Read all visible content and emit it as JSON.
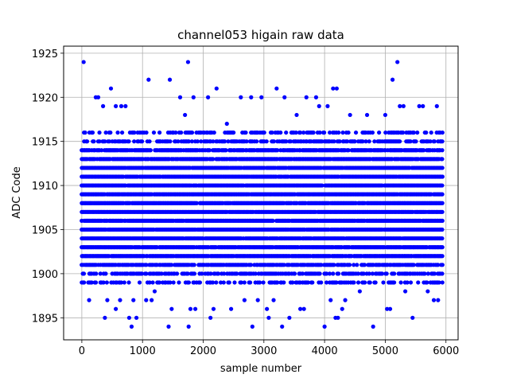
{
  "chart_data": {
    "type": "scatter",
    "title": "channel053 higain raw data",
    "xlabel": "sample number",
    "ylabel": "ADC Code",
    "xlim": [
      -300,
      6200
    ],
    "ylim": [
      1892.5,
      1925.8
    ],
    "x_ticks": [
      0,
      1000,
      2000,
      3000,
      4000,
      5000,
      6000
    ],
    "y_ticks": [
      1895,
      1900,
      1905,
      1910,
      1915,
      1920,
      1925
    ],
    "grid": true,
    "legend": "none",
    "marker_color": "#0000ff",
    "sample_range": [
      0,
      5940
    ],
    "series": [
      {
        "band_levels": [
          1899,
          1900,
          1901,
          1902,
          1903,
          1904,
          1905,
          1906,
          1907,
          1908,
          1909,
          1910,
          1911,
          1912,
          1913,
          1914,
          1915,
          1916
        ],
        "outlier_points": [
          [
            30,
            1924
          ],
          [
            120,
            1897
          ],
          [
            230,
            1920
          ],
          [
            270,
            1920
          ],
          [
            350,
            1919
          ],
          [
            480,
            1921
          ],
          [
            560,
            1919
          ],
          [
            650,
            1919
          ],
          [
            720,
            1919
          ],
          [
            380,
            1895
          ],
          [
            420,
            1897
          ],
          [
            560,
            1896
          ],
          [
            630,
            1897
          ],
          [
            780,
            1895
          ],
          [
            820,
            1894
          ],
          [
            900,
            1895
          ],
          [
            850,
            1897
          ],
          [
            1060,
            1897
          ],
          [
            1100,
            1922
          ],
          [
            1150,
            1897
          ],
          [
            1200,
            1898
          ],
          [
            1430,
            1894
          ],
          [
            1450,
            1922
          ],
          [
            1480,
            1896
          ],
          [
            1620,
            1920
          ],
          [
            1700,
            1918
          ],
          [
            1750,
            1924
          ],
          [
            1760,
            1894
          ],
          [
            1790,
            1896
          ],
          [
            1840,
            1920
          ],
          [
            1870,
            1896
          ],
          [
            2080,
            1920
          ],
          [
            2120,
            1895
          ],
          [
            2170,
            1896
          ],
          [
            2220,
            1921
          ],
          [
            2390,
            1917
          ],
          [
            2460,
            1896
          ],
          [
            2620,
            1920
          ],
          [
            2680,
            1897
          ],
          [
            2790,
            1920
          ],
          [
            2810,
            1894
          ],
          [
            2900,
            1897
          ],
          [
            2960,
            1920
          ],
          [
            3050,
            1896
          ],
          [
            3080,
            1895
          ],
          [
            3160,
            1897
          ],
          [
            3210,
            1921
          ],
          [
            3300,
            1894
          ],
          [
            3340,
            1920
          ],
          [
            3420,
            1895
          ],
          [
            3540,
            1918
          ],
          [
            3600,
            1896
          ],
          [
            3660,
            1896
          ],
          [
            3700,
            1920
          ],
          [
            3860,
            1920
          ],
          [
            3910,
            1919
          ],
          [
            4000,
            1894
          ],
          [
            4050,
            1919
          ],
          [
            4100,
            1897
          ],
          [
            4140,
            1921
          ],
          [
            4180,
            1895
          ],
          [
            4200,
            1921
          ],
          [
            4220,
            1895
          ],
          [
            4290,
            1896
          ],
          [
            4340,
            1897
          ],
          [
            4420,
            1918
          ],
          [
            4580,
            1898
          ],
          [
            4700,
            1918
          ],
          [
            4800,
            1894
          ],
          [
            5000,
            1918
          ],
          [
            5030,
            1896
          ],
          [
            5080,
            1896
          ],
          [
            5120,
            1922
          ],
          [
            5200,
            1924
          ],
          [
            5240,
            1919
          ],
          [
            5300,
            1919
          ],
          [
            5330,
            1898
          ],
          [
            5450,
            1895
          ],
          [
            5560,
            1919
          ],
          [
            5620,
            1919
          ],
          [
            5700,
            1898
          ],
          [
            5800,
            1897
          ],
          [
            5850,
            1919
          ],
          [
            5870,
            1897
          ]
        ]
      }
    ]
  }
}
